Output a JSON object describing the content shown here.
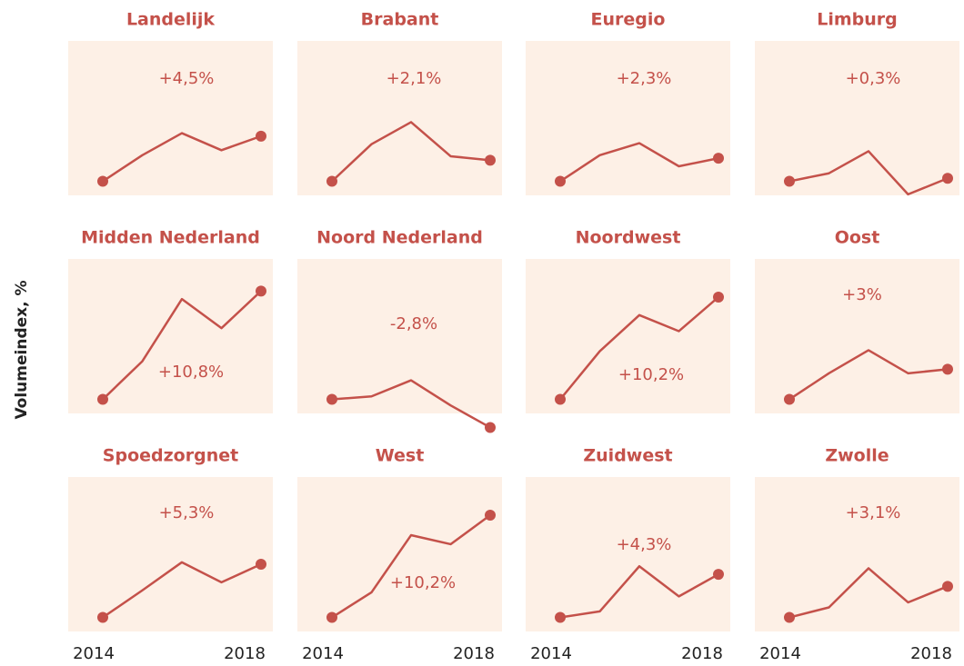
{
  "chart_data": {
    "type": "line",
    "y_label": "Volumeindex, %",
    "color": "#c4514a",
    "categories": [
      "2014",
      null,
      null,
      null,
      "2018"
    ],
    "ylim": [
      98.6,
      114
    ],
    "series": [
      {
        "name": "Landelijk",
        "annotation": "+4,5%",
        "values": [
          100,
          102.6,
          104.8,
          103.1,
          104.5
        ]
      },
      {
        "name": "Brabant",
        "annotation": "+2,1%",
        "values": [
          100,
          103.7,
          105.9,
          102.5,
          102.1
        ]
      },
      {
        "name": "Euregio",
        "annotation": "+2,3%",
        "values": [
          100,
          102.6,
          103.8,
          101.5,
          102.3
        ]
      },
      {
        "name": "Limburg",
        "annotation": "+0,3%",
        "values": [
          100,
          100.8,
          103,
          98.7,
          100.3
        ]
      },
      {
        "name": "Midden Nederland",
        "annotation": "+10,8%",
        "values": [
          100,
          103.8,
          110,
          107.1,
          110.8
        ]
      },
      {
        "name": "Noord Nederland",
        "annotation": "-2,8%",
        "values": [
          100,
          100.3,
          101.9,
          99.4,
          97.2
        ]
      },
      {
        "name": "Noordwest",
        "annotation": "+10,2%",
        "values": [
          100,
          104.8,
          108.4,
          106.8,
          110.2
        ]
      },
      {
        "name": "Oost",
        "annotation": "+3%",
        "values": [
          100,
          102.6,
          104.9,
          102.6,
          103
        ]
      },
      {
        "name": "Spoedzorgnet",
        "annotation": "+5,3%",
        "values": [
          100,
          102.7,
          105.5,
          103.5,
          105.3
        ]
      },
      {
        "name": "West",
        "annotation": "+10,2%",
        "values": [
          100,
          102.5,
          108.2,
          107.3,
          110.2
        ]
      },
      {
        "name": "Zuidwest",
        "annotation": "+4,3%",
        "values": [
          100,
          100.6,
          105.1,
          102.1,
          104.3
        ]
      },
      {
        "name": "Zwolle",
        "annotation": "+3,1%",
        "values": [
          100,
          101,
          104.9,
          101.5,
          103.1
        ]
      }
    ]
  }
}
